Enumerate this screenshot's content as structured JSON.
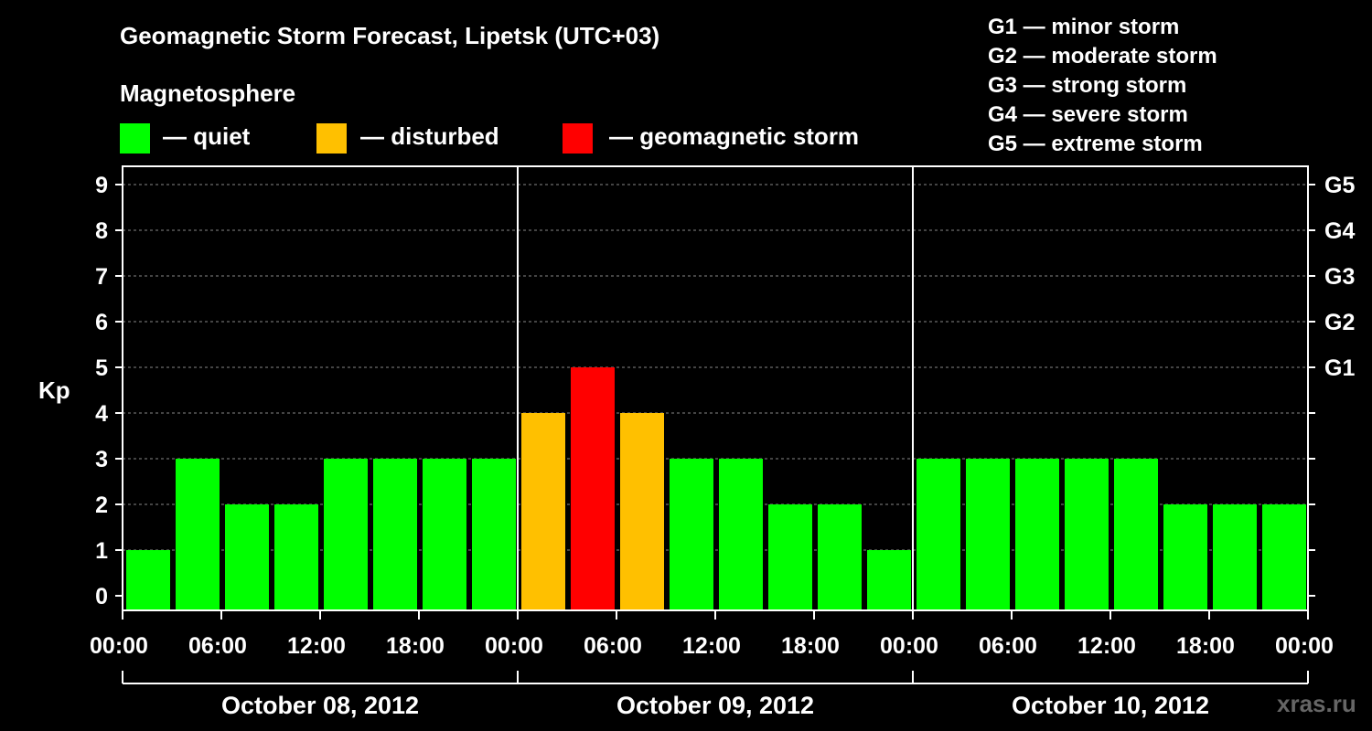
{
  "title": "Geomagnetic Storm Forecast, Lipetsk (UTC+03)",
  "legend": {
    "heading": "Magnetosphere",
    "items": [
      {
        "label": "— quiet",
        "color": "#00ff00"
      },
      {
        "label": "— disturbed",
        "color": "#ffc000"
      },
      {
        "label": "— geomagnetic storm",
        "color": "#ff0000"
      }
    ]
  },
  "storm_levels": [
    "G1 — minor storm",
    "G2 — moderate storm",
    "G3 — strong storm",
    "G4 — severe storm",
    "G5 — extreme storm"
  ],
  "watermark": "xras.ru",
  "chart_data": {
    "type": "bar",
    "ylabel": "Kp",
    "xlabel": "",
    "ylim": [
      0,
      9
    ],
    "y_ticks": [
      "0",
      "1",
      "2",
      "3",
      "4",
      "5",
      "6",
      "7",
      "8",
      "9"
    ],
    "right_ticks": [
      {
        "value": 5,
        "label": "G1"
      },
      {
        "value": 6,
        "label": "G2"
      },
      {
        "value": 7,
        "label": "G3"
      },
      {
        "value": 8,
        "label": "G4"
      },
      {
        "value": 9,
        "label": "G5"
      }
    ],
    "x_tick_labels": [
      "00:00",
      "06:00",
      "12:00",
      "18:00",
      "00:00",
      "06:00",
      "12:00",
      "18:00",
      "00:00",
      "06:00",
      "12:00",
      "18:00",
      "00:00"
    ],
    "days": [
      "October 08, 2012",
      "October 09, 2012",
      "October 10, 2012"
    ],
    "grid": "dashed horizontal",
    "interval_hours": 3,
    "values": [
      1,
      3,
      2,
      2,
      3,
      3,
      3,
      3,
      4,
      5,
      4,
      3,
      3,
      2,
      2,
      1,
      3,
      3,
      3,
      3,
      3,
      2,
      2,
      2
    ],
    "colors": {
      "quiet": "#00ff00",
      "disturbed": "#ffc000",
      "storm": "#ff0000"
    }
  }
}
